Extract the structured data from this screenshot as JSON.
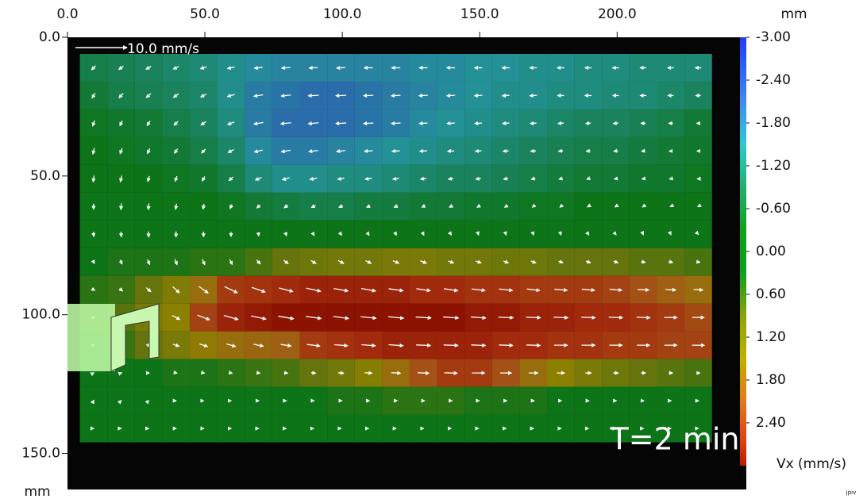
{
  "chart_data": {
    "type": "heatmap",
    "x_label": "mm",
    "y_label": "mm",
    "xlim": [
      0,
      247
    ],
    "ylim": [
      0,
      163
    ],
    "xticks": [
      {
        "value": 0,
        "label": "0.0"
      },
      {
        "value": 50,
        "label": "50.0"
      },
      {
        "value": 100,
        "label": "100.0"
      },
      {
        "value": 150,
        "label": "150.0"
      },
      {
        "value": 200,
        "label": "200.0"
      }
    ],
    "yticks": [
      {
        "value": 0,
        "label": "0.0"
      },
      {
        "value": 50,
        "label": "50.0"
      },
      {
        "value": 100,
        "label": "100.0"
      },
      {
        "value": 150,
        "label": "150.0"
      }
    ],
    "x": [
      9.5,
      19.5,
      29.5,
      39.5,
      49.5,
      59.5,
      69.5,
      79.5,
      89.5,
      99.5,
      109.5,
      119.5,
      129.5,
      139.5,
      149.5,
      159.5,
      169.5,
      179.5,
      189.5,
      199.5,
      209.5,
      219.5,
      229.5
    ],
    "y": [
      11,
      21,
      31,
      41,
      51,
      61,
      71,
      81,
      91,
      101,
      111,
      121,
      131,
      141
    ],
    "vx": [
      [
        -0.8,
        -0.9,
        -1.0,
        -1.1,
        -1.2,
        -1.4,
        -1.6,
        -1.7,
        -1.7,
        -1.7,
        -1.7,
        -1.7,
        -1.6,
        -1.6,
        -1.5,
        -1.5,
        -1.4,
        -1.4,
        -1.3,
        -1.3,
        -1.2,
        -1.2,
        -1.2
      ],
      [
        -0.6,
        -0.8,
        -0.9,
        -1.0,
        -1.1,
        -1.4,
        -1.8,
        -1.9,
        -2.0,
        -2.0,
        -1.9,
        -1.8,
        -1.7,
        -1.6,
        -1.5,
        -1.4,
        -1.4,
        -1.3,
        -1.3,
        -1.2,
        -1.2,
        -1.1,
        -1.0
      ],
      [
        -0.4,
        -0.5,
        -0.6,
        -0.8,
        -1.0,
        -1.3,
        -1.8,
        -2.0,
        -2.0,
        -2.0,
        -1.9,
        -1.8,
        -1.6,
        -1.5,
        -1.4,
        -1.3,
        -1.2,
        -1.1,
        -1.0,
        -1.0,
        -0.9,
        -0.8,
        -0.6
      ],
      [
        -0.3,
        -0.4,
        -0.5,
        -0.6,
        -0.8,
        -1.1,
        -1.6,
        -1.8,
        -1.8,
        -1.7,
        -1.6,
        -1.5,
        -1.4,
        -1.3,
        -1.2,
        -1.1,
        -1.0,
        -0.9,
        -0.8,
        -0.8,
        -0.7,
        -0.6,
        -0.5
      ],
      [
        -0.2,
        -0.3,
        -0.3,
        -0.4,
        -0.5,
        -0.8,
        -1.2,
        -1.4,
        -1.4,
        -1.3,
        -1.3,
        -1.2,
        -1.1,
        -1.0,
        -1.0,
        -0.9,
        -0.8,
        -0.7,
        -0.6,
        -0.6,
        -0.5,
        -0.5,
        -0.4
      ],
      [
        0.0,
        -0.1,
        -0.1,
        -0.2,
        -0.2,
        -0.4,
        -0.6,
        -0.7,
        -0.8,
        -0.8,
        -0.7,
        -0.7,
        -0.6,
        -0.6,
        -0.5,
        -0.5,
        -0.4,
        -0.4,
        -0.3,
        -0.3,
        -0.3,
        -0.2,
        -0.2
      ],
      [
        0.1,
        0.1,
        0.1,
        0.0,
        0.0,
        0.0,
        0.1,
        0.2,
        0.3,
        0.3,
        0.3,
        0.2,
        0.2,
        0.2,
        0.1,
        0.1,
        0.1,
        0.1,
        0.2,
        0.2,
        0.1,
        0.1,
        0.1
      ],
      [
        0.3,
        0.4,
        0.4,
        0.4,
        0.5,
        0.5,
        0.7,
        0.9,
        1.0,
        1.1,
        1.1,
        1.2,
        1.2,
        1.1,
        1.1,
        1.0,
        1.0,
        0.9,
        0.9,
        0.9,
        0.8,
        0.8,
        0.7
      ],
      [
        0.5,
        0.6,
        0.9,
        1.3,
        1.8,
        2.5,
        2.6,
        2.7,
        2.8,
        2.8,
        2.8,
        2.8,
        2.7,
        2.7,
        2.6,
        2.6,
        2.5,
        2.5,
        2.5,
        2.4,
        2.2,
        2.0,
        1.8
      ],
      [
        0.6,
        0.8,
        1.2,
        1.5,
        2.4,
        2.8,
        2.9,
        3.0,
        3.0,
        3.0,
        3.0,
        3.0,
        3.0,
        3.0,
        2.9,
        2.9,
        2.8,
        2.8,
        2.7,
        2.7,
        2.6,
        2.5,
        2.3
      ],
      [
        0.4,
        0.6,
        0.9,
        1.2,
        1.6,
        1.8,
        1.9,
        2.0,
        2.5,
        2.6,
        2.7,
        2.8,
        2.8,
        2.8,
        2.8,
        2.7,
        2.7,
        2.6,
        2.6,
        2.5,
        2.5,
        2.4,
        2.4
      ],
      [
        0.2,
        0.3,
        0.3,
        0.4,
        0.4,
        0.5,
        0.6,
        0.7,
        0.9,
        1.1,
        1.4,
        1.8,
        2.2,
        2.5,
        2.5,
        2.2,
        1.8,
        1.5,
        1.2,
        1.0,
        0.9,
        0.8,
        0.7
      ],
      [
        0.1,
        0.1,
        0.1,
        0.1,
        0.1,
        0.1,
        0.2,
        0.2,
        0.3,
        0.4,
        0.4,
        0.5,
        0.5,
        0.5,
        0.4,
        0.4,
        0.4,
        0.3,
        0.3,
        0.3,
        0.3,
        0.2,
        0.2
      ],
      [
        0.1,
        0.1,
        0.1,
        0.1,
        0.1,
        0.1,
        0.1,
        0.1,
        0.1,
        0.1,
        0.1,
        0.1,
        0.1,
        0.1,
        0.1,
        0.1,
        0.1,
        0.1,
        0.1,
        0.1,
        0.1,
        0.1,
        0.1
      ]
    ],
    "vy": [
      [
        0.8,
        0.7,
        0.6,
        0.5,
        0.4,
        0.3,
        0.2,
        0.1,
        0.1,
        0.1,
        0.0,
        0.0,
        0.0,
        0.0,
        0.0,
        0.0,
        0.0,
        0.0,
        0.0,
        0.0,
        0.0,
        0.0,
        0.0
      ],
      [
        1.0,
        0.9,
        0.8,
        0.7,
        0.6,
        0.4,
        0.3,
        0.2,
        0.1,
        0.1,
        0.1,
        0.1,
        0.1,
        0.1,
        0.1,
        0.1,
        0.1,
        0.0,
        0.0,
        0.0,
        0.0,
        0.0,
        0.0
      ],
      [
        1.1,
        1.0,
        0.9,
        0.8,
        0.7,
        0.5,
        0.3,
        0.2,
        0.2,
        0.1,
        0.1,
        0.1,
        0.1,
        0.1,
        0.1,
        0.1,
        0.1,
        0.1,
        0.1,
        0.1,
        0.0,
        0.0,
        0.0
      ],
      [
        1.2,
        1.1,
        1.0,
        0.9,
        0.8,
        0.6,
        0.4,
        0.3,
        0.2,
        0.2,
        0.1,
        0.1,
        0.1,
        0.1,
        0.1,
        0.1,
        0.1,
        0.1,
        0.1,
        0.1,
        0.1,
        0.0,
        0.0
      ],
      [
        1.2,
        1.2,
        1.1,
        1.0,
        0.9,
        0.7,
        0.5,
        0.4,
        0.3,
        0.2,
        0.2,
        0.2,
        0.2,
        0.2,
        0.2,
        0.2,
        0.2,
        0.2,
        0.2,
        0.1,
        0.1,
        0.1,
        0.0
      ],
      [
        1.1,
        1.2,
        1.2,
        1.1,
        1.0,
        0.8,
        0.6,
        0.5,
        0.4,
        0.3,
        0.3,
        0.3,
        0.3,
        0.3,
        0.3,
        0.3,
        0.3,
        0.3,
        0.2,
        0.2,
        0.2,
        0.1,
        0.1
      ],
      [
        0.9,
        1.0,
        1.1,
        1.1,
        1.0,
        0.9,
        0.7,
        0.6,
        0.5,
        0.4,
        0.4,
        0.4,
        0.4,
        0.3,
        0.3,
        0.3,
        0.3,
        0.3,
        0.3,
        0.2,
        0.2,
        0.2,
        0.1
      ],
      [
        0.6,
        0.8,
        1.0,
        1.1,
        1.1,
        1.0,
        0.8,
        0.7,
        0.6,
        0.6,
        0.5,
        0.5,
        0.5,
        0.4,
        0.4,
        0.4,
        0.4,
        0.3,
        0.3,
        0.3,
        0.2,
        0.2,
        0.1
      ],
      [
        0.3,
        0.5,
        0.8,
        1.2,
        1.3,
        1.2,
        0.9,
        0.7,
        0.6,
        0.5,
        0.5,
        0.4,
        0.4,
        0.4,
        0.3,
        0.3,
        0.3,
        0.2,
        0.2,
        0.2,
        0.1,
        0.1,
        0.1
      ],
      [
        0.0,
        0.2,
        0.5,
        0.8,
        0.9,
        0.8,
        0.6,
        0.5,
        0.4,
        0.4,
        0.3,
        0.3,
        0.2,
        0.2,
        0.2,
        0.1,
        0.1,
        0.1,
        0.1,
        0.1,
        0.1,
        0.0,
        0.0
      ],
      [
        -0.1,
        0.0,
        0.2,
        0.4,
        0.5,
        0.5,
        0.4,
        0.3,
        0.3,
        0.2,
        0.2,
        0.2,
        0.1,
        0.1,
        0.1,
        0.1,
        0.1,
        0.0,
        0.0,
        0.0,
        0.0,
        0.0,
        0.0
      ],
      [
        -0.1,
        -0.1,
        0.0,
        0.1,
        0.1,
        0.1,
        0.1,
        0.1,
        0.1,
        0.1,
        0.1,
        0.1,
        0.1,
        0.1,
        0.0,
        0.0,
        0.0,
        0.0,
        0.0,
        0.0,
        0.0,
        0.0,
        0.0
      ],
      [
        -0.2,
        -0.1,
        -0.1,
        0.0,
        0.0,
        0.0,
        0.0,
        0.0,
        0.0,
        0.0,
        0.0,
        0.0,
        0.0,
        0.0,
        0.0,
        0.0,
        0.0,
        0.0,
        0.0,
        0.0,
        0.0,
        0.0,
        0.0
      ],
      [
        0.0,
        0.0,
        0.0,
        0.0,
        0.0,
        0.0,
        0.0,
        0.0,
        0.0,
        0.0,
        0.0,
        0.0,
        0.0,
        0.0,
        0.0,
        0.0,
        0.0,
        0.0,
        0.0,
        0.0,
        0.0,
        0.0,
        0.0
      ]
    ],
    "cell_size": 10,
    "colorbar": {
      "label": "Vx (mm/s)",
      "lim": [
        -3,
        3
      ],
      "ticks": [
        {
          "value": -3,
          "label": "-3.00"
        },
        {
          "value": -2.4,
          "label": "-2.40"
        },
        {
          "value": -1.8,
          "label": "-1.80"
        },
        {
          "value": -1.2,
          "label": "-1.20"
        },
        {
          "value": -0.6,
          "label": "-0.60"
        },
        {
          "value": 0,
          "label": "0.00"
        },
        {
          "value": 0.6,
          "label": "0.60"
        },
        {
          "value": 1.2,
          "label": "1.20"
        },
        {
          "value": 1.8,
          "label": "1.80"
        },
        {
          "value": 2.4,
          "label": "2.40"
        }
      ],
      "colorscale": [
        [
          -3,
          "#2038ff"
        ],
        [
          -2.1,
          "#3c8cf0"
        ],
        [
          -1.5,
          "#30c8d0"
        ],
        [
          -0.9,
          "#20b070"
        ],
        [
          -0.3,
          "#10a020"
        ],
        [
          0.3,
          "#10a020"
        ],
        [
          0.9,
          "#8ca010"
        ],
        [
          1.5,
          "#c0b000"
        ],
        [
          2.1,
          "#e07a20"
        ],
        [
          2.7,
          "#e03a10"
        ],
        [
          3,
          "#c01800"
        ]
      ]
    },
    "reference_arrow": {
      "value": 10,
      "label": "10.0 mm/s"
    },
    "annotation": "T=2 min",
    "watermark": "jpiv"
  }
}
